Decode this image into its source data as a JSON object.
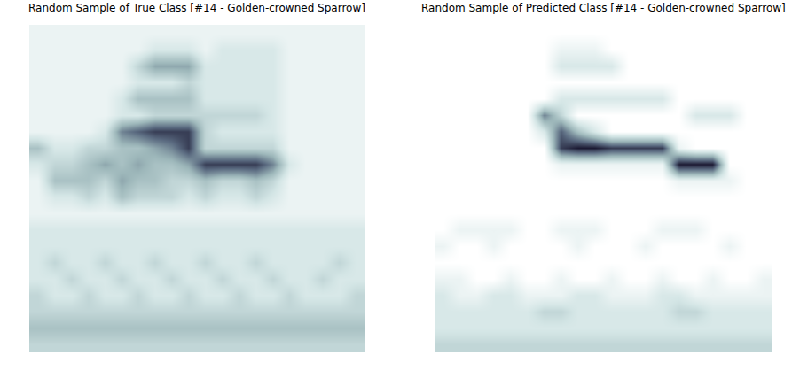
{
  "chart_data": [
    {
      "type": "heatmap",
      "title": "Random Sample of True Class [#14 - Golden-crowned Sparrow]",
      "tick_labels": false,
      "zlim": [
        0,
        9
      ],
      "z": [
        [
          1,
          1,
          1,
          1,
          1,
          1,
          1,
          1,
          1,
          1,
          1,
          1,
          1,
          1,
          1,
          1,
          1,
          1,
          1,
          1
        ],
        [
          1,
          1,
          1,
          1,
          1,
          1,
          1,
          2,
          2,
          2,
          1,
          2,
          2,
          2,
          2,
          1,
          1,
          1,
          1,
          1
        ],
        [
          1,
          1,
          1,
          1,
          1,
          1,
          3,
          5,
          5,
          5,
          2,
          2,
          2,
          2,
          2,
          1,
          1,
          1,
          1,
          1
        ],
        [
          1,
          1,
          1,
          1,
          1,
          1,
          2,
          2,
          2,
          3,
          2,
          2,
          2,
          2,
          2,
          1,
          1,
          1,
          1,
          1
        ],
        [
          1,
          1,
          1,
          1,
          1,
          2,
          4,
          4,
          4,
          4,
          2,
          2,
          2,
          2,
          2,
          1,
          1,
          1,
          1,
          1
        ],
        [
          1,
          1,
          1,
          1,
          1,
          2,
          2,
          3,
          3,
          3,
          3,
          3,
          3,
          3,
          2,
          1,
          1,
          1,
          1,
          1
        ],
        [
          1,
          1,
          1,
          1,
          2,
          6,
          7,
          8,
          8,
          8,
          3,
          2,
          2,
          2,
          2,
          1,
          1,
          1,
          1,
          1
        ],
        [
          4,
          2,
          2,
          3,
          3,
          4,
          4,
          5,
          6,
          8,
          3,
          3,
          3,
          3,
          3,
          1,
          1,
          1,
          1,
          1
        ],
        [
          2,
          3,
          3,
          4,
          5,
          4,
          5,
          4,
          4,
          5,
          8,
          8,
          8,
          8,
          6,
          2,
          1,
          1,
          1,
          1
        ],
        [
          1,
          4,
          4,
          4,
          3,
          5,
          4,
          4,
          3,
          3,
          4,
          3,
          3,
          4,
          3,
          1,
          1,
          1,
          1,
          1
        ],
        [
          1,
          2,
          2,
          3,
          2,
          4,
          3,
          3,
          3,
          2,
          3,
          2,
          2,
          3,
          2,
          1,
          1,
          1,
          1,
          1
        ],
        [
          1,
          1,
          1,
          1,
          1,
          1,
          1,
          1,
          1,
          1,
          1,
          1,
          1,
          1,
          1,
          1,
          1,
          1,
          1,
          1
        ],
        [
          2,
          2,
          2,
          2,
          2,
          2,
          2,
          2,
          2,
          2,
          2,
          2,
          2,
          2,
          2,
          2,
          2,
          2,
          2,
          2
        ],
        [
          2,
          2,
          2,
          2,
          2,
          2,
          2,
          2,
          2,
          2,
          2,
          2,
          2,
          2,
          2,
          2,
          2,
          2,
          2,
          2
        ],
        [
          2,
          3,
          2,
          2,
          3,
          2,
          2,
          3,
          2,
          2,
          3,
          2,
          2,
          3,
          2,
          2,
          2,
          2,
          3,
          2
        ],
        [
          2,
          2,
          3,
          2,
          2,
          3,
          2,
          2,
          3,
          2,
          2,
          3,
          2,
          2,
          3,
          2,
          2,
          3,
          2,
          2
        ],
        [
          3,
          2,
          2,
          3,
          2,
          2,
          3,
          2,
          2,
          3,
          2,
          2,
          3,
          2,
          2,
          3,
          2,
          2,
          2,
          3
        ],
        [
          3,
          3,
          3,
          3,
          3,
          3,
          3,
          3,
          3,
          3,
          3,
          3,
          3,
          3,
          3,
          3,
          3,
          3,
          3,
          3
        ],
        [
          4,
          4,
          4,
          4,
          4,
          4,
          4,
          4,
          4,
          4,
          4,
          4,
          4,
          4,
          4,
          4,
          4,
          4,
          4,
          4
        ],
        [
          3,
          3,
          3,
          3,
          3,
          3,
          3,
          3,
          3,
          3,
          3,
          3,
          3,
          3,
          3,
          3,
          3,
          3,
          3,
          3
        ]
      ]
    },
    {
      "type": "heatmap",
      "title": "Random Sample of Predicted Class [#14 - Golden-crowned Sparrow]",
      "tick_labels": false,
      "zlim": [
        0,
        9
      ],
      "z": [
        [
          0,
          0,
          0,
          0,
          0,
          0,
          0,
          0,
          0,
          0,
          0,
          0,
          0,
          0,
          0,
          0,
          0,
          0,
          0,
          0
        ],
        [
          0,
          0,
          0,
          0,
          0,
          0,
          0,
          1,
          1,
          1,
          0,
          0,
          0,
          0,
          0,
          0,
          0,
          0,
          0,
          0
        ],
        [
          0,
          0,
          0,
          0,
          0,
          0,
          0,
          2,
          2,
          2,
          2,
          0,
          0,
          0,
          0,
          0,
          0,
          0,
          0,
          0
        ],
        [
          0,
          0,
          0,
          0,
          0,
          0,
          0,
          0,
          0,
          0,
          0,
          0,
          0,
          0,
          0,
          0,
          0,
          0,
          0,
          0
        ],
        [
          0,
          0,
          0,
          0,
          0,
          0,
          0,
          2,
          2,
          2,
          2,
          2,
          2,
          2,
          0,
          0,
          0,
          0,
          0,
          0
        ],
        [
          0,
          0,
          0,
          0,
          0,
          0,
          6,
          3,
          0,
          0,
          0,
          0,
          0,
          0,
          0,
          2,
          2,
          2,
          0,
          0
        ],
        [
          0,
          0,
          0,
          0,
          0,
          0,
          2,
          7,
          4,
          2,
          0,
          0,
          0,
          0,
          0,
          0,
          0,
          0,
          0,
          0
        ],
        [
          0,
          0,
          0,
          0,
          0,
          0,
          0,
          8,
          9,
          9,
          8,
          8,
          8,
          8,
          1,
          0,
          0,
          0,
          0,
          0
        ],
        [
          0,
          0,
          0,
          0,
          0,
          0,
          0,
          1,
          1,
          1,
          1,
          1,
          1,
          1,
          9,
          9,
          9,
          0,
          0,
          0
        ],
        [
          0,
          0,
          0,
          0,
          0,
          0,
          0,
          0,
          0,
          0,
          0,
          0,
          0,
          0,
          1,
          1,
          1,
          1,
          0,
          0
        ],
        [
          0,
          0,
          0,
          0,
          0,
          0,
          0,
          0,
          0,
          0,
          0,
          0,
          0,
          0,
          0,
          0,
          0,
          0,
          0,
          0
        ],
        [
          0,
          0,
          0,
          0,
          0,
          0,
          0,
          0,
          0,
          0,
          0,
          0,
          0,
          0,
          0,
          0,
          0,
          0,
          0,
          0
        ],
        [
          0,
          1,
          1,
          1,
          1,
          0,
          0,
          1,
          1,
          1,
          0,
          0,
          0,
          1,
          1,
          1,
          0,
          0,
          0,
          0
        ],
        [
          1,
          0,
          0,
          1,
          0,
          0,
          0,
          0,
          1,
          0,
          0,
          0,
          1,
          0,
          0,
          0,
          0,
          1,
          0,
          0
        ],
        [
          0,
          0,
          0,
          0,
          0,
          0,
          0,
          0,
          0,
          0,
          0,
          0,
          0,
          0,
          0,
          0,
          0,
          0,
          0,
          0
        ],
        [
          1,
          1,
          0,
          0,
          1,
          0,
          0,
          1,
          0,
          0,
          1,
          0,
          0,
          1,
          0,
          0,
          1,
          0,
          0,
          1
        ],
        [
          2,
          1,
          1,
          2,
          2,
          1,
          1,
          1,
          2,
          2,
          1,
          1,
          1,
          2,
          2,
          1,
          1,
          1,
          1,
          1
        ],
        [
          2,
          2,
          2,
          2,
          2,
          2,
          3,
          3,
          2,
          2,
          2,
          2,
          2,
          2,
          3,
          3,
          2,
          2,
          2,
          2
        ],
        [
          2,
          2,
          2,
          2,
          2,
          2,
          2,
          2,
          2,
          2,
          2,
          2,
          2,
          2,
          2,
          2,
          2,
          2,
          2,
          2
        ],
        [
          3,
          3,
          3,
          3,
          3,
          3,
          3,
          3,
          3,
          3,
          3,
          3,
          3,
          3,
          3,
          3,
          3,
          3,
          3,
          3
        ]
      ]
    }
  ]
}
